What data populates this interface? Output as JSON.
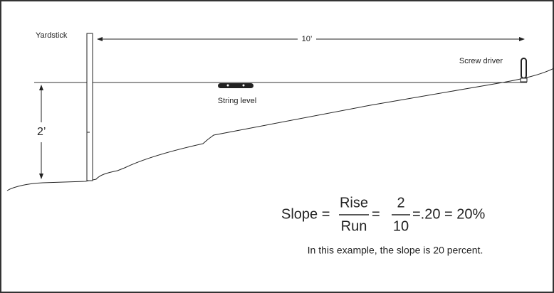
{
  "labels": {
    "yardstick": "Yardstick",
    "run_distance": "10’",
    "screw_driver": "Screw driver",
    "string_level": "String level",
    "rise_distance": "2’"
  },
  "formula": {
    "lhs": "Slope =",
    "numerator": "Rise",
    "denominator": "Run",
    "equals": "=",
    "num_value": "2",
    "den_value": "10",
    "result": "=.20 = 20%"
  },
  "caption": "In this example, the slope is 20 percent."
}
